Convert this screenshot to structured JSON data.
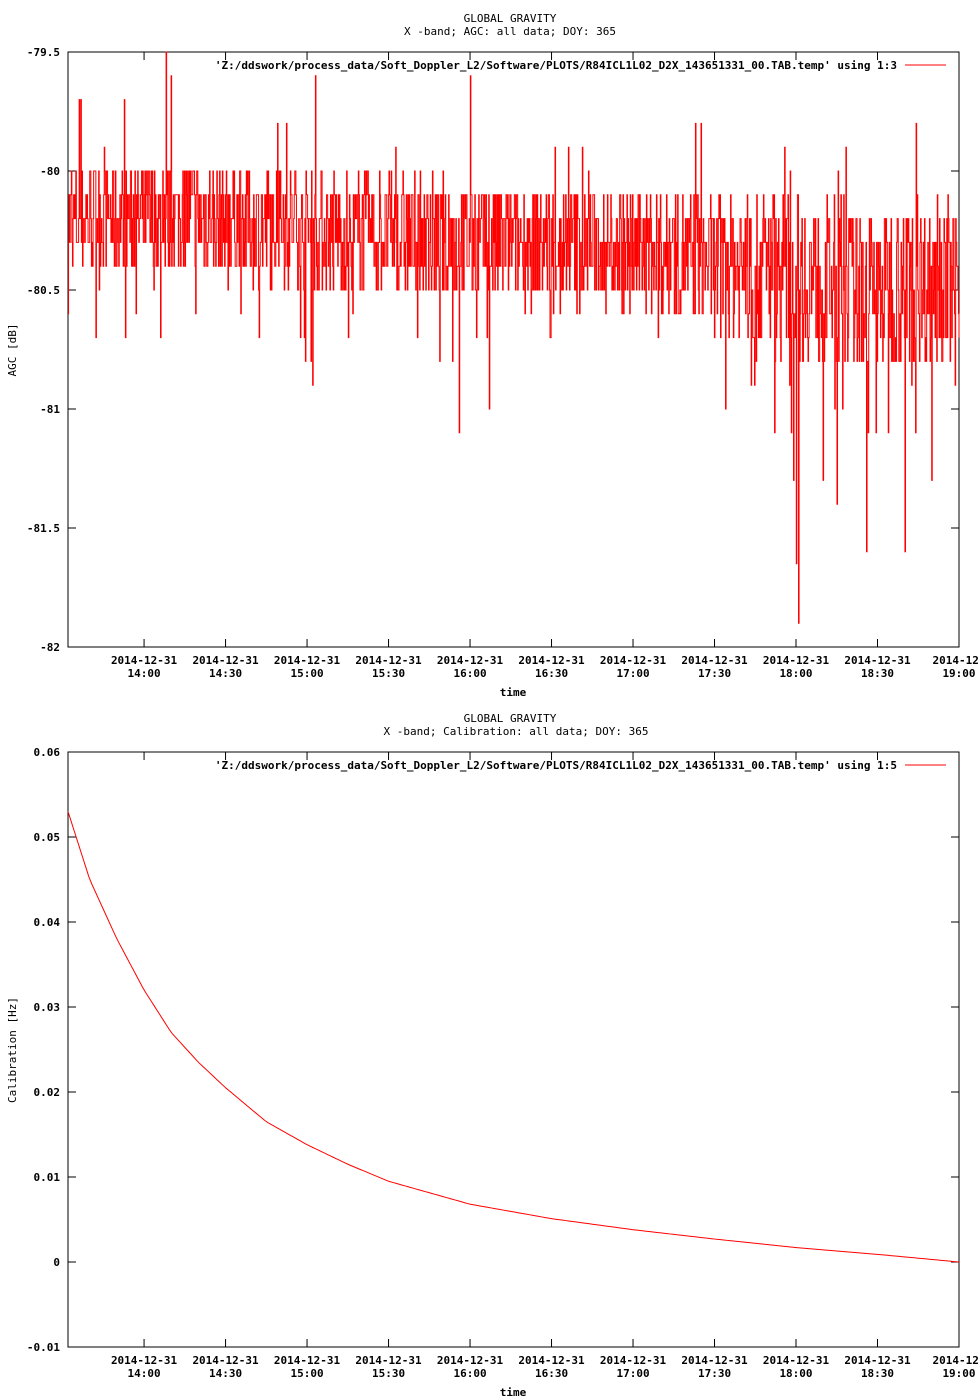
{
  "chart_data": [
    {
      "type": "line",
      "title": "GLOBAL GRAVITY",
      "subtitle": "X -band; AGC: all data; DOY: 365",
      "xlabel": "time",
      "ylabel": "AGC [dB]",
      "ylim": [
        -82,
        -79.5
      ],
      "yticks": [
        -79.5,
        -80,
        -80.5,
        -81,
        -81.5,
        -82
      ],
      "ytick_labels": [
        "-79.5",
        "-80",
        "-80.5",
        "-81",
        "-81.5",
        "-82"
      ],
      "xlim": [
        "2014-12-31 13:32",
        "2014-12-31 19:00"
      ],
      "xticks": [
        "2014-12-31 14:00",
        "2014-12-31 14:30",
        "2014-12-31 15:00",
        "2014-12-31 15:30",
        "2014-12-31 16:00",
        "2014-12-31 16:30",
        "2014-12-31 17:00",
        "2014-12-31 17:30",
        "2014-12-31 18:00",
        "2014-12-31 18:30",
        "2014-12-31 19:00"
      ],
      "xtick_date_labels": [
        "2014-12-31",
        "2014-12-31",
        "2014-12-31",
        "2014-12-31",
        "2014-12-31",
        "2014-12-31",
        "2014-12-31",
        "2014-12-31",
        "2014-12-31",
        "2014-12-31",
        "2014-12-"
      ],
      "xtick_time_labels": [
        "14:00",
        "14:30",
        "15:00",
        "15:30",
        "16:00",
        "16:30",
        "17:00",
        "17:30",
        "18:00",
        "18:30",
        "19:00"
      ],
      "grid": false,
      "legend_position": "top-right",
      "series": [
        {
          "name": "'Z:/ddswork/process_data/Soft_Doppler_L2/Software/PLOTS/R84ICL1L02_D2X_143651331_00.TAB.temp' using 1:3",
          "color": "#ff0000",
          "noisy": true,
          "x": [
            "2014-12-31 13:32",
            "2014-12-31 14:00",
            "2014-12-31 14:30",
            "2014-12-31 15:00",
            "2014-12-31 15:30",
            "2014-12-31 16:00",
            "2014-12-31 16:30",
            "2014-12-31 17:00",
            "2014-12-31 17:30",
            "2014-12-31 18:00",
            "2014-12-31 18:30",
            "2014-12-31 19:00"
          ],
          "mean": [
            -80.2,
            -80.2,
            -80.2,
            -80.25,
            -80.28,
            -80.3,
            -80.3,
            -80.33,
            -80.38,
            -80.45,
            -80.5,
            -80.45
          ],
          "spread": [
            0.15,
            0.15,
            0.15,
            0.15,
            0.16,
            0.16,
            0.16,
            0.17,
            0.18,
            0.22,
            0.22,
            0.2
          ],
          "peaks": [
            {
              "x": "2014-12-31 13:32",
              "y": -80.6
            },
            {
              "x": "2014-12-31 13:57",
              "y": -80.6
            },
            {
              "x": "2014-12-31 14:08",
              "y": -79.5
            },
            {
              "x": "2014-12-31 14:10",
              "y": -79.6
            },
            {
              "x": "2014-12-31 15:03",
              "y": -79.6
            },
            {
              "x": "2014-12-31 15:02",
              "y": -80.9
            },
            {
              "x": "2014-12-31 15:56",
              "y": -81.1
            },
            {
              "x": "2014-12-31 16:00",
              "y": -79.6
            },
            {
              "x": "2014-12-31 16:07",
              "y": -81.0
            },
            {
              "x": "2014-12-31 17:25",
              "y": -79.8
            },
            {
              "x": "2014-12-31 17:52",
              "y": -81.1
            },
            {
              "x": "2014-12-31 17:59",
              "y": -81.3
            },
            {
              "x": "2014-12-31 18:00",
              "y": -81.65
            },
            {
              "x": "2014-12-31 18:01",
              "y": -81.9
            },
            {
              "x": "2014-12-31 18:10",
              "y": -81.3
            },
            {
              "x": "2014-12-31 18:15",
              "y": -81.4
            },
            {
              "x": "2014-12-31 18:26",
              "y": -81.6
            },
            {
              "x": "2014-12-31 18:34",
              "y": -81.1
            },
            {
              "x": "2014-12-31 18:40",
              "y": -81.6
            },
            {
              "x": "2014-12-31 18:44",
              "y": -81.1
            },
            {
              "x": "2014-12-31 18:50",
              "y": -81.3
            }
          ]
        }
      ]
    },
    {
      "type": "line",
      "title": "GLOBAL GRAVITY",
      "subtitle": "X -band; Calibration: all data; DOY: 365",
      "xlabel": "time",
      "ylabel": "Calibration [Hz]",
      "ylim": [
        -0.01,
        0.06
      ],
      "yticks": [
        -0.01,
        0,
        0.01,
        0.02,
        0.03,
        0.04,
        0.05,
        0.06
      ],
      "ytick_labels": [
        "-0.01",
        "0",
        "0.01",
        "0.02",
        "0.03",
        "0.04",
        "0.05",
        "0.06"
      ],
      "xlim": [
        "2014-12-31 13:32",
        "2014-12-31 19:00"
      ],
      "xticks": [
        "2014-12-31 14:00",
        "2014-12-31 14:30",
        "2014-12-31 15:00",
        "2014-12-31 15:30",
        "2014-12-31 16:00",
        "2014-12-31 16:30",
        "2014-12-31 17:00",
        "2014-12-31 17:30",
        "2014-12-31 18:00",
        "2014-12-31 18:30",
        "2014-12-31 19:00"
      ],
      "xtick_date_labels": [
        "2014-12-31",
        "2014-12-31",
        "2014-12-31",
        "2014-12-31",
        "2014-12-31",
        "2014-12-31",
        "2014-12-31",
        "2014-12-31",
        "2014-12-31",
        "2014-12-31",
        "2014-12-"
      ],
      "xtick_time_labels": [
        "14:00",
        "14:30",
        "15:00",
        "15:30",
        "16:00",
        "16:30",
        "17:00",
        "17:30",
        "18:00",
        "18:30",
        "19:00"
      ],
      "grid": false,
      "legend_position": "top-right",
      "series": [
        {
          "name": "'Z:/ddswork/process_data/Soft_Doppler_L2/Software/PLOTS/R84ICL1L02_D2X_143651331_00.TAB.temp' using 1:5",
          "color": "#ff0000",
          "x": [
            "2014-12-31 13:32",
            "2014-12-31 13:40",
            "2014-12-31 13:50",
            "2014-12-31 14:00",
            "2014-12-31 14:10",
            "2014-12-31 14:20",
            "2014-12-31 14:30",
            "2014-12-31 14:45",
            "2014-12-31 15:00",
            "2014-12-31 15:15",
            "2014-12-31 15:30",
            "2014-12-31 16:00",
            "2014-12-31 16:30",
            "2014-12-31 17:00",
            "2014-12-31 17:30",
            "2014-12-31 18:00",
            "2014-12-31 18:30",
            "2014-12-31 19:00"
          ],
          "values": [
            0.053,
            0.045,
            0.038,
            0.032,
            0.027,
            0.0235,
            0.0205,
            0.0165,
            0.0138,
            0.0115,
            0.0095,
            0.0068,
            0.0051,
            0.0038,
            0.0027,
            0.0017,
            0.0009,
            0.0
          ]
        }
      ]
    }
  ]
}
